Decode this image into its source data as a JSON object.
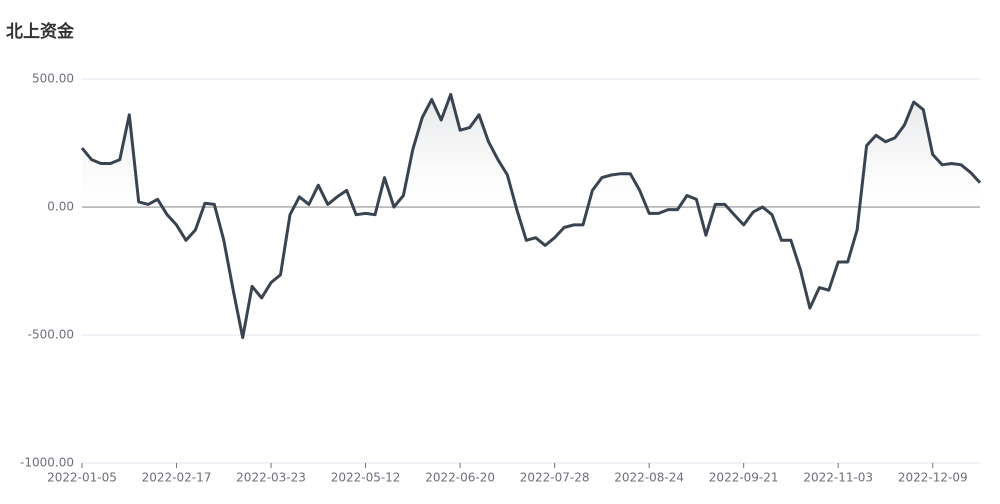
{
  "chart_data": {
    "type": "area",
    "title": "北上资金",
    "categories": [
      "2022-01-05",
      null,
      null,
      null,
      null,
      null,
      null,
      null,
      null,
      null,
      "2022-02-17",
      null,
      null,
      null,
      null,
      null,
      null,
      null,
      null,
      null,
      "2022-03-23",
      null,
      null,
      null,
      null,
      null,
      null,
      null,
      null,
      null,
      "2022-05-12",
      null,
      null,
      null,
      null,
      null,
      null,
      null,
      null,
      null,
      "2022-06-20",
      null,
      null,
      null,
      null,
      null,
      null,
      null,
      null,
      null,
      "2022-07-28",
      null,
      null,
      null,
      null,
      null,
      null,
      null,
      null,
      null,
      "2022-08-24",
      null,
      null,
      null,
      null,
      null,
      null,
      null,
      null,
      null,
      "2022-09-21",
      null,
      null,
      null,
      null,
      null,
      null,
      null,
      null,
      null,
      "2022-11-03",
      null,
      null,
      null,
      null,
      null,
      null,
      null,
      null,
      null,
      "2022-12-09",
      null,
      null,
      null,
      null,
      null
    ],
    "values": [
      230,
      185,
      170,
      170,
      185,
      360,
      20,
      10,
      30,
      -30,
      -70,
      -130,
      -90,
      15,
      10,
      -130,
      -325,
      -510,
      -310,
      -355,
      -295,
      -265,
      -30,
      40,
      10,
      85,
      10,
      40,
      65,
      -30,
      -25,
      -30,
      115,
      0,
      45,
      225,
      350,
      420,
      340,
      440,
      300,
      310,
      360,
      255,
      185,
      125,
      -10,
      -130,
      -120,
      -150,
      -120,
      -80,
      -70,
      -70,
      65,
      115,
      125,
      130,
      130,
      65,
      -25,
      -25,
      -10,
      -10,
      45,
      30,
      -110,
      10,
      10,
      -30,
      -70,
      -20,
      0,
      -30,
      -130,
      -130,
      -245,
      -395,
      -315,
      -325,
      -215,
      -215,
      -90,
      240,
      280,
      255,
      270,
      320,
      410,
      380,
      205,
      165,
      170,
      165,
      135,
      95
    ],
    "color": "#3a4450",
    "ylim": [
      -1000,
      500
    ],
    "yticks": [
      {
        "value": -1000,
        "label": "-1000.00"
      },
      {
        "value": -500,
        "label": "-500.00"
      },
      {
        "value": 0,
        "label": "0.00"
      },
      {
        "value": 500,
        "label": "500.00"
      }
    ],
    "grid": true
  }
}
